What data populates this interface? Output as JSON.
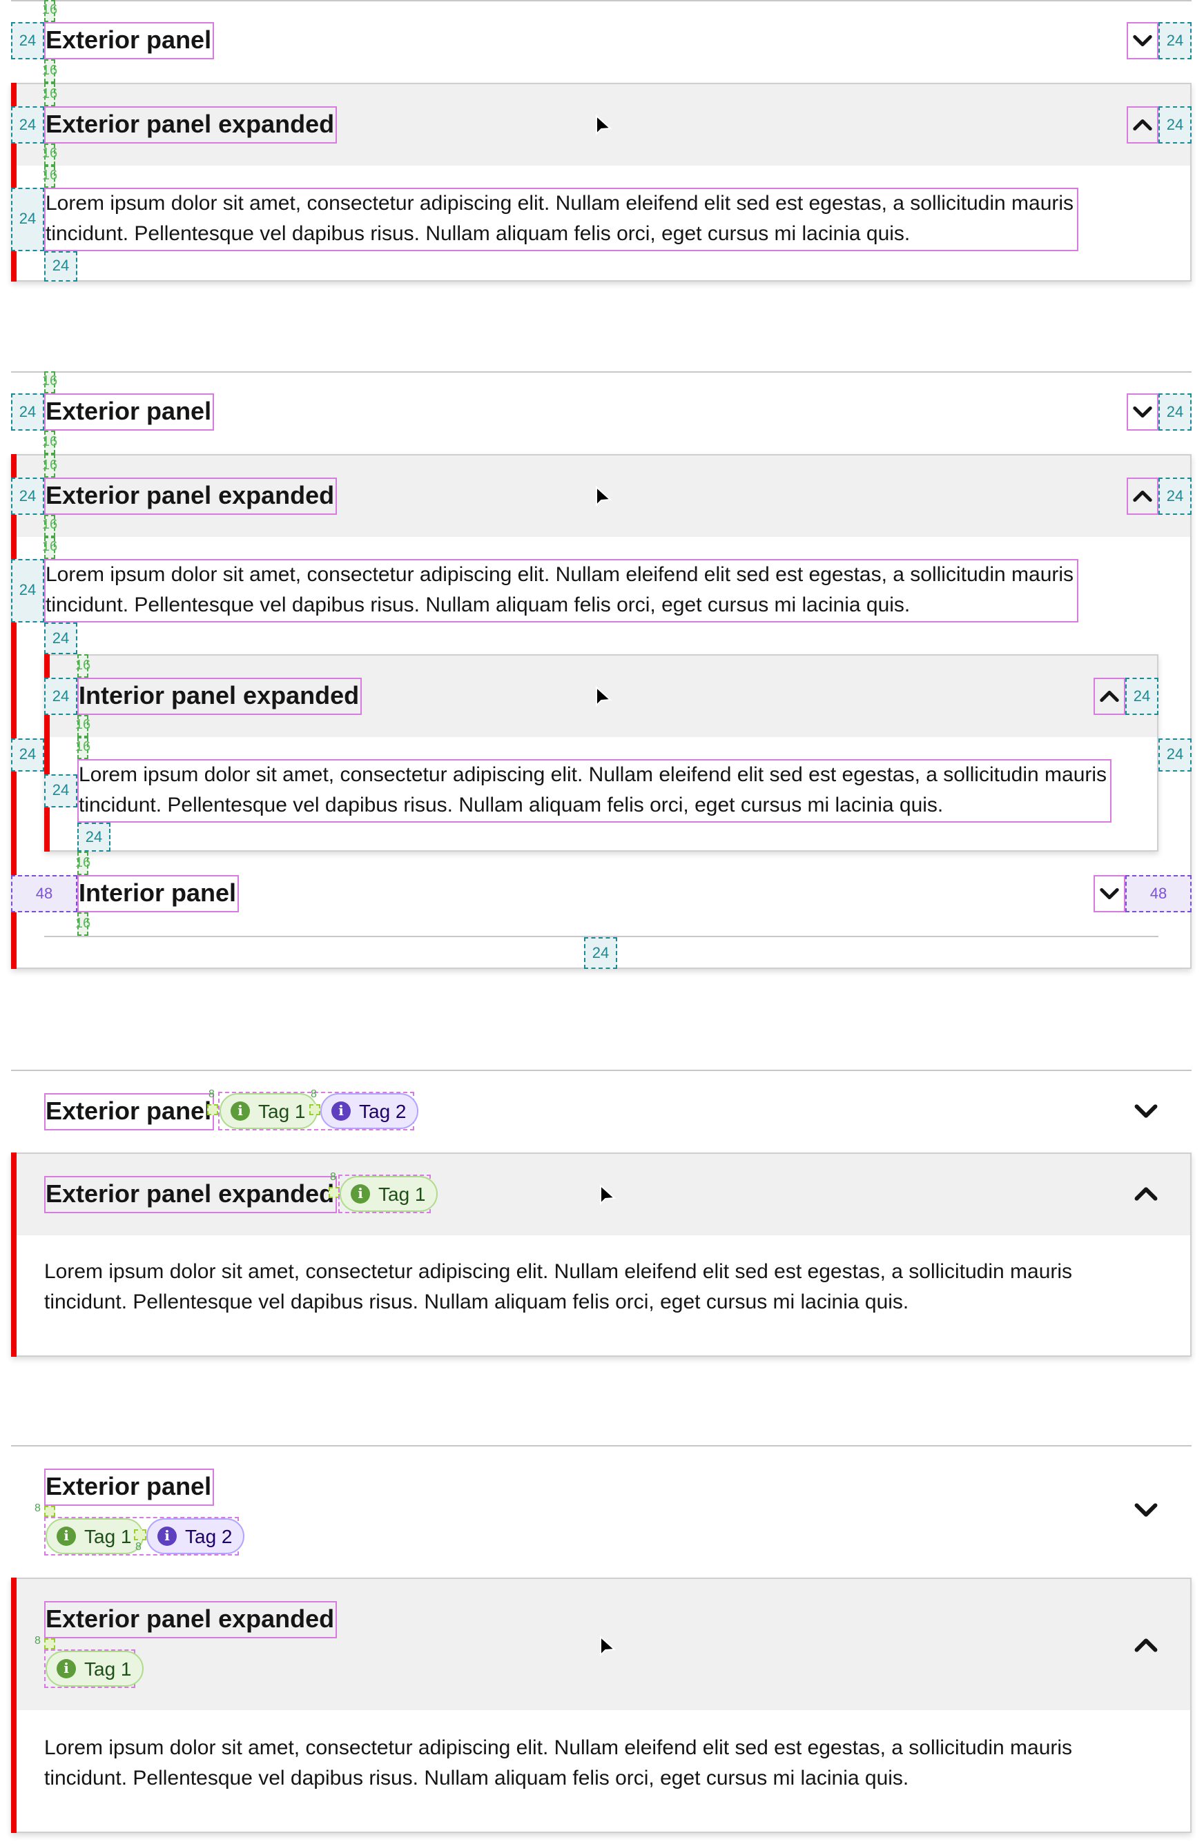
{
  "annotations": {
    "s16": "16",
    "s24": "24",
    "s48": "48",
    "s8": "8"
  },
  "colors": {
    "expanded_accent_bar": "#ee0000",
    "expanded_header_bg": "#f0f0f0",
    "divider": "#c7c7c7",
    "annotation_outline": "#d77be0",
    "spacer_24": "#1b8a94",
    "spacer_16": "#4ca64c",
    "spacer_48": "#7a4fd6",
    "spacer_8": "#9acd32",
    "tag_green": "#5e9b3a",
    "tag_purple": "#5e40be"
  },
  "example1": {
    "collapsed": {
      "title": "Exterior panel",
      "expanded": false,
      "icon": "chevron-down-icon"
    },
    "expanded": {
      "title": "Exterior panel expanded",
      "expanded": true,
      "icon": "chevron-up-icon",
      "body": "Lorem ipsum dolor sit amet, consectetur adipiscing elit. Nullam eleifend elit sed est egestas, a sollicitudin mauris tincidunt. Pellentesque vel dapibus risus. Nullam aliquam felis orci, eget cursus mi lacinia quis."
    }
  },
  "example2": {
    "collapsed": {
      "title": "Exterior panel",
      "expanded": false
    },
    "expanded": {
      "title": "Exterior panel expanded",
      "expanded": true,
      "body": "Lorem ipsum dolor sit amet, consectetur adipiscing elit. Nullam eleifend elit sed est egestas, a sollicitudin mauris tincidunt. Pellentesque vel dapibus risus. Nullam aliquam felis orci, eget cursus mi lacinia quis."
    },
    "interior_expanded": {
      "title": "Interior panel expanded",
      "expanded": true,
      "body": "Lorem ipsum dolor sit amet, consectetur adipiscing elit. Nullam eleifend elit sed est egestas, a sollicitudin mauris tincidunt. Pellentesque vel dapibus risus. Nullam aliquam felis orci, eget cursus mi lacinia quis."
    },
    "interior_collapsed": {
      "title": "Interior panel",
      "expanded": false
    }
  },
  "example3": {
    "collapsed": {
      "title": "Exterior panel",
      "expanded": false,
      "tags": [
        {
          "label": "Tag 1",
          "color": "green",
          "icon": "info-icon"
        },
        {
          "label": "Tag 2",
          "color": "purple",
          "icon": "info-icon"
        }
      ]
    },
    "expanded": {
      "title": "Exterior panel expanded",
      "expanded": true,
      "tags": [
        {
          "label": "Tag 1",
          "color": "green",
          "icon": "info-icon"
        }
      ],
      "body": "Lorem ipsum dolor sit amet, consectetur adipiscing elit. Nullam eleifend elit sed est egestas, a sollicitudin mauris tincidunt. Pellentesque vel dapibus risus. Nullam aliquam felis orci, eget cursus mi lacinia quis."
    }
  },
  "example4": {
    "collapsed": {
      "title": "Exterior panel",
      "expanded": false,
      "tags": [
        {
          "label": "Tag 1",
          "color": "green",
          "icon": "info-icon"
        },
        {
          "label": "Tag 2",
          "color": "purple",
          "icon": "info-icon"
        }
      ]
    },
    "expanded": {
      "title": "Exterior panel expanded",
      "expanded": true,
      "tags": [
        {
          "label": "Tag 1",
          "color": "green",
          "icon": "info-icon"
        }
      ],
      "body": "Lorem ipsum dolor sit amet, consectetur adipiscing elit. Nullam eleifend elit sed est egestas, a sollicitudin mauris tincidunt. Pellentesque vel dapibus risus. Nullam aliquam felis orci, eget cursus mi lacinia quis."
    }
  }
}
